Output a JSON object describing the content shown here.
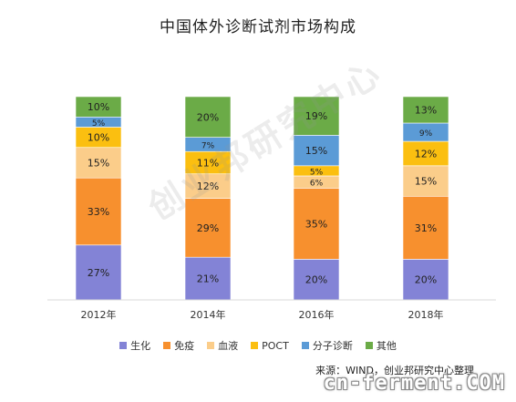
{
  "chart_data": {
    "type": "bar",
    "stacked": true,
    "normalized": true,
    "title": "中国体外诊断试剂市场构成",
    "categories": [
      "2012年",
      "2014年",
      "2016年",
      "2018年"
    ],
    "series": [
      {
        "name": "生化",
        "color": "#8383d6",
        "values": [
          27,
          21,
          20,
          20
        ]
      },
      {
        "name": "免疫",
        "color": "#f7902e",
        "values": [
          33,
          29,
          35,
          31
        ]
      },
      {
        "name": "血液",
        "color": "#fbcd8a",
        "values": [
          15,
          12,
          6,
          15
        ]
      },
      {
        "name": "POCT",
        "color": "#fbbf10",
        "values": [
          10,
          11,
          5,
          12
        ]
      },
      {
        "name": "分子诊断",
        "color": "#5b9bd6",
        "values": [
          5,
          7,
          15,
          9
        ]
      },
      {
        "name": "其他",
        "color": "#6bab47",
        "values": [
          10,
          20,
          19,
          13
        ]
      }
    ],
    "value_suffix": "%",
    "grid": false,
    "legend_position": "bottom"
  },
  "source": "来源：WIND，创业邦研究中心整理",
  "watermark": "创业邦研究中心",
  "site_mark": "cn-ferment.COM"
}
